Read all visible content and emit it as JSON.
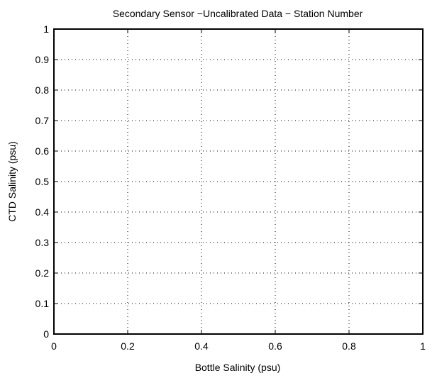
{
  "chart_data": {
    "type": "scatter",
    "title": "Secondary Sensor −Uncalibrated Data − Station Number",
    "xlabel": "Bottle Salinity (psu)",
    "ylabel": "CTD Salinity (psu)",
    "xlim": [
      0,
      1
    ],
    "ylim": [
      0,
      1
    ],
    "xticks": [
      0,
      0.2,
      0.4,
      0.6,
      0.8,
      1
    ],
    "xtick_labels": [
      "0",
      "0.2",
      "0.4",
      "0.6",
      "0.8",
      "1"
    ],
    "yticks": [
      0,
      0.1,
      0.2,
      0.3,
      0.4,
      0.5,
      0.6,
      0.7,
      0.8,
      0.9,
      1
    ],
    "ytick_labels": [
      "0",
      "0.1",
      "0.2",
      "0.3",
      "0.4",
      "0.5",
      "0.6",
      "0.7",
      "0.8",
      "0.9",
      "1"
    ],
    "grid": true,
    "grid_style": "dotted",
    "series": []
  },
  "colors": {
    "axes": "#000000",
    "grid": "#000000",
    "background": "#ffffff"
  }
}
